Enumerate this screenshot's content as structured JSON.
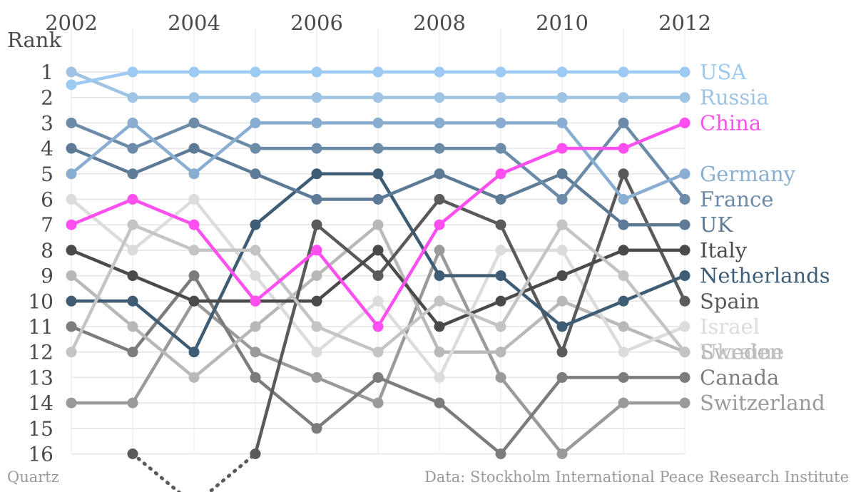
{
  "chart_data": {
    "type": "line",
    "chart_subtype": "bump",
    "ylabel": "Rank",
    "years": [
      2002,
      2003,
      2004,
      2005,
      2006,
      2007,
      2008,
      2009,
      2010,
      2011,
      2012
    ],
    "x_tick_labels": [
      "2002",
      "2004",
      "2006",
      "2008",
      "2010",
      "2012"
    ],
    "y_ticks": [
      1,
      2,
      3,
      4,
      5,
      6,
      7,
      8,
      9,
      10,
      11,
      12,
      13,
      14,
      15,
      16
    ],
    "ylim": [
      1,
      16
    ],
    "y_inverted": true,
    "grid": true,
    "legend": "direct labels at right end of each line",
    "note": "Values with rank > 16 are drawn as dotted lines leaving the plot area",
    "series": [
      {
        "name": "USA",
        "color": "#9ccaf2",
        "values": [
          1.5,
          1,
          1,
          1,
          1,
          1,
          1,
          1,
          1,
          1,
          1
        ],
        "ranks_shown": [
          2,
          1,
          1,
          1,
          1,
          1,
          1,
          1,
          1,
          1,
          1
        ]
      },
      {
        "name": "Russia",
        "color": "#9fc3e3",
        "values": [
          1,
          2,
          2,
          2,
          2,
          2,
          2,
          2,
          2,
          2,
          2
        ]
      },
      {
        "name": "China",
        "color": "#ff4ff0",
        "values": [
          7,
          6,
          7,
          10,
          8,
          11,
          7,
          5,
          4,
          4,
          3
        ]
      },
      {
        "name": "Ukraine",
        "color": "#c4c4c4",
        "values": [
          12,
          7,
          8,
          8,
          11,
          12,
          10,
          11,
          7,
          9,
          12
        ]
      },
      {
        "name": "Germany",
        "color": "#89aed1",
        "values": [
          5,
          3,
          5,
          3,
          3,
          3,
          3,
          3,
          3,
          6,
          5
        ]
      },
      {
        "name": "France",
        "color": "#6b8ba8",
        "values": [
          3,
          4,
          3,
          4,
          4,
          4,
          4,
          4,
          6,
          3,
          6
        ]
      },
      {
        "name": "UK",
        "color": "#5d7b96",
        "values": [
          4,
          5,
          4,
          5,
          6,
          6,
          5,
          6,
          5,
          7,
          7
        ]
      },
      {
        "name": "Italy",
        "color": "#4a4a4a",
        "values": [
          8,
          9,
          10,
          10,
          10,
          8,
          11,
          10,
          9,
          8,
          8
        ]
      },
      {
        "name": "Netherlands",
        "color": "#3e5d75",
        "values": [
          10,
          10,
          12,
          7,
          5,
          5,
          9,
          9,
          11,
          10,
          9
        ]
      },
      {
        "name": "Spain",
        "color": "#5a5a5a",
        "values": [
          null,
          16,
          18,
          16,
          7,
          9,
          6,
          7,
          12,
          5,
          10
        ],
        "dotted_segments": [
          [
            2003,
            2004
          ],
          [
            2004,
            2005
          ]
        ]
      },
      {
        "name": "Israel",
        "color": "#dcdcdc",
        "values": [
          6,
          8,
          6,
          9,
          12,
          10,
          13,
          8,
          8,
          12,
          11
        ]
      },
      {
        "name": "Sweden",
        "color": "#b8b8b8",
        "values": [
          9,
          11,
          13,
          11,
          9,
          7,
          12,
          12,
          10,
          11,
          12
        ]
      },
      {
        "name": "Canada",
        "color": "#7c7c7c",
        "values": [
          11,
          12,
          9,
          13,
          15,
          13,
          14,
          16,
          13,
          13,
          13
        ]
      },
      {
        "name": "Switzerland",
        "color": "#9a9a9a",
        "values": [
          14,
          14,
          10,
          12,
          13,
          14,
          8,
          13,
          16,
          14,
          14
        ]
      }
    ]
  },
  "footer": {
    "credit": "Quartz",
    "source": "Data: Stockholm International Peace Research Institute"
  }
}
